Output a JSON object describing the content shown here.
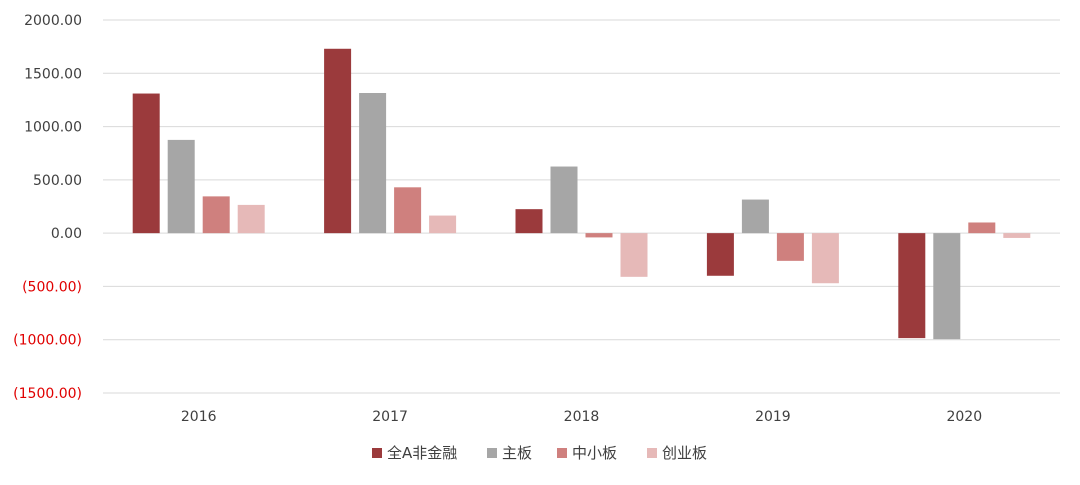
{
  "chart_data": {
    "type": "bar",
    "categories": [
      "2016",
      "2017",
      "2018",
      "2019",
      "2020"
    ],
    "series": [
      {
        "name": "全A非金融",
        "color": "#9b3a3c",
        "values": [
          1310,
          1730,
          225,
          -400,
          -985
        ]
      },
      {
        "name": "主板",
        "color": "#a6a6a6",
        "values": [
          875,
          1315,
          625,
          315,
          -995
        ]
      },
      {
        "name": "中小板",
        "color": "#cf807e",
        "values": [
          345,
          430,
          -40,
          -260,
          100
        ]
      },
      {
        "name": "创业板",
        "color": "#e6b9b8",
        "values": [
          265,
          165,
          -410,
          -470,
          -45
        ]
      }
    ],
    "ylim": [
      -1500,
      2000
    ],
    "yticks": [
      2000,
      1500,
      1000,
      500,
      0,
      -500,
      -1000,
      -1500
    ],
    "ytick_labels": [
      "2000.00",
      "1500.00",
      "1000.00",
      "500.00",
      "0.00",
      "(500.00)",
      "(1000.00)",
      "(1500.00)"
    ],
    "negative_label_color": "#e00000",
    "positive_label_color": "#404040",
    "grid": true,
    "legend": "bottom"
  }
}
